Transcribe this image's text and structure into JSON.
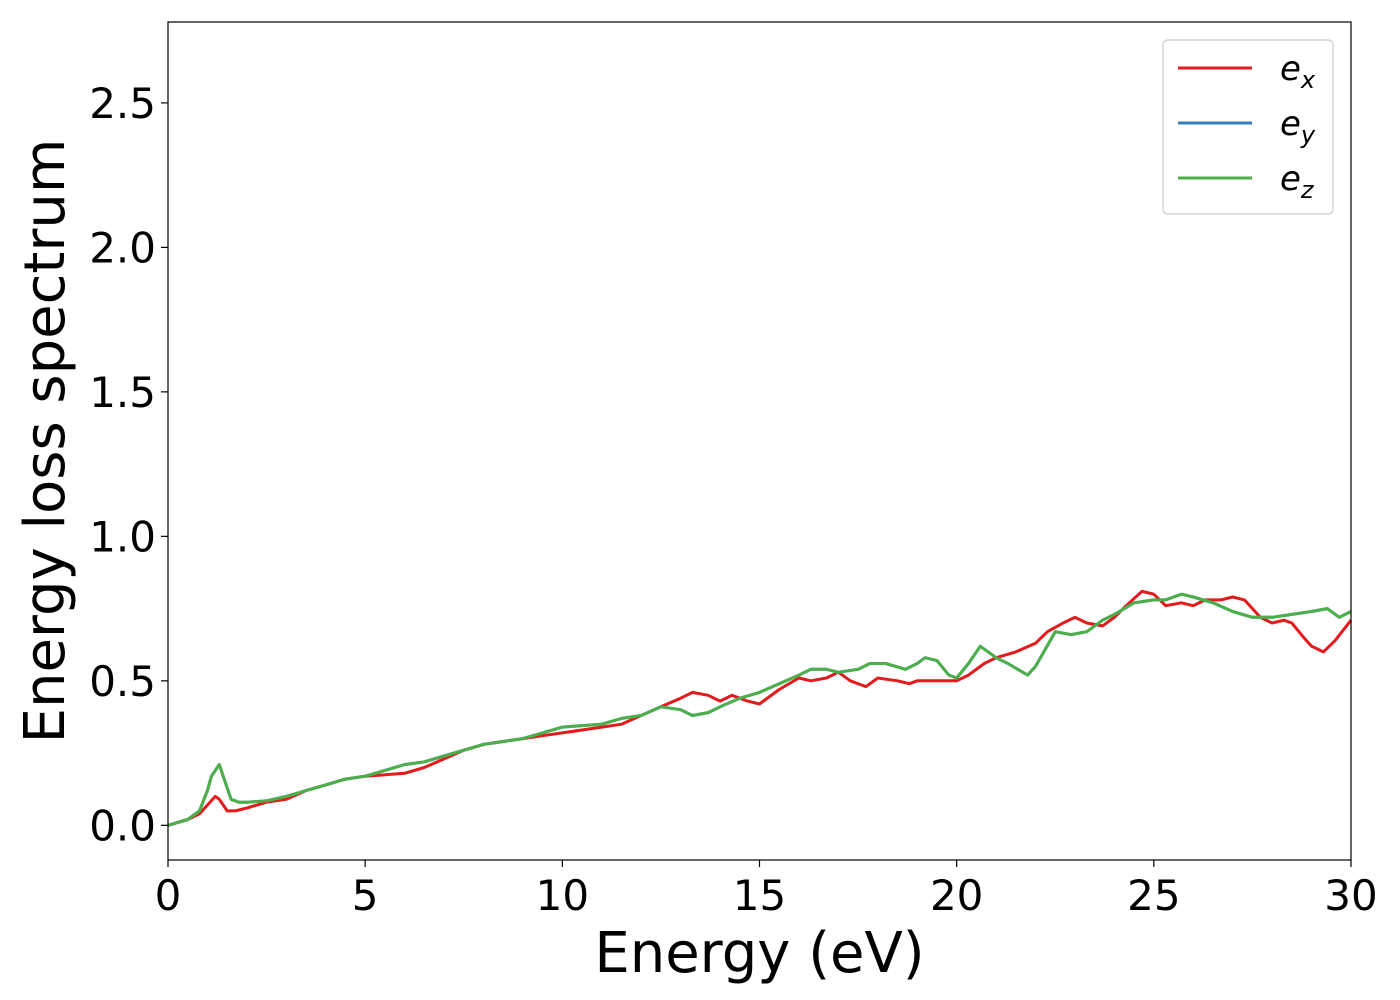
{
  "chart_data": {
    "type": "line",
    "title": "",
    "xlabel": "Energy (eV)",
    "ylabel": "Energy loss spectrum",
    "xlim": [
      0,
      30
    ],
    "ylim": [
      -0.12,
      2.78
    ],
    "xticks": [
      0,
      5,
      10,
      15,
      20,
      25,
      30
    ],
    "xtick_labels": [
      "0",
      "5",
      "10",
      "15",
      "20",
      "25",
      "30"
    ],
    "yticks": [
      0.0,
      0.5,
      1.0,
      1.5,
      2.0,
      2.5
    ],
    "ytick_labels": [
      "0.0",
      "0.5",
      "1.0",
      "1.5",
      "2.0",
      "2.5"
    ],
    "grid": false,
    "legend_position": "top-right",
    "series": [
      {
        "name": "e",
        "subscript": "x",
        "color": "#e41a1c",
        "x": [
          0,
          0.5,
          0.8,
          1.0,
          1.2,
          1.3,
          1.5,
          1.7,
          2.0,
          2.5,
          3.0,
          3.5,
          4.0,
          4.5,
          5.0,
          5.5,
          6.0,
          6.5,
          7.0,
          7.5,
          8.0,
          8.5,
          9.0,
          9.5,
          10.0,
          10.5,
          11.0,
          11.5,
          12.0,
          12.5,
          13.0,
          13.3,
          13.7,
          14.0,
          14.3,
          14.7,
          15.0,
          15.5,
          16.0,
          16.3,
          16.7,
          17.0,
          17.3,
          17.7,
          18.0,
          18.5,
          18.8,
          19.0,
          19.5,
          20.0,
          20.3,
          20.7,
          21.0,
          21.5,
          22.0,
          22.3,
          22.7,
          23.0,
          23.3,
          23.7,
          24.0,
          24.3,
          24.7,
          25.0,
          25.3,
          25.7,
          26.0,
          26.3,
          26.7,
          27.0,
          27.3,
          27.7,
          28.0,
          28.3,
          28.5,
          28.8,
          29.0,
          29.3,
          29.6,
          30.0
        ],
        "values": [
          0.0,
          0.02,
          0.04,
          0.07,
          0.1,
          0.09,
          0.05,
          0.05,
          0.06,
          0.08,
          0.09,
          0.12,
          0.14,
          0.16,
          0.17,
          0.175,
          0.18,
          0.2,
          0.23,
          0.26,
          0.28,
          0.29,
          0.3,
          0.31,
          0.32,
          0.33,
          0.34,
          0.35,
          0.38,
          0.41,
          0.44,
          0.46,
          0.45,
          0.43,
          0.45,
          0.43,
          0.42,
          0.47,
          0.51,
          0.5,
          0.51,
          0.53,
          0.5,
          0.48,
          0.51,
          0.5,
          0.49,
          0.5,
          0.5,
          0.5,
          0.52,
          0.56,
          0.58,
          0.6,
          0.63,
          0.67,
          0.7,
          0.72,
          0.7,
          0.69,
          0.72,
          0.76,
          0.81,
          0.8,
          0.76,
          0.77,
          0.76,
          0.78,
          0.78,
          0.79,
          0.78,
          0.72,
          0.7,
          0.71,
          0.7,
          0.65,
          0.62,
          0.6,
          0.64,
          0.71
        ]
      },
      {
        "name": "e",
        "subscript": "y",
        "color": "#377eb8",
        "x": [
          0,
          0.5,
          0.8,
          1.0,
          1.1,
          1.3,
          1.4,
          1.6,
          1.8,
          2.0,
          2.5,
          3.0,
          3.5,
          4.0,
          4.5,
          5.0,
          5.5,
          6.0,
          6.5,
          7.0,
          7.5,
          8.0,
          8.5,
          9.0,
          9.5,
          10.0,
          10.5,
          11.0,
          11.5,
          12.0,
          12.5,
          13.0,
          13.3,
          13.7,
          14.0,
          14.5,
          15.0,
          15.5,
          16.0,
          16.3,
          16.7,
          17.0,
          17.5,
          17.8,
          18.2,
          18.7,
          19.0,
          19.2,
          19.5,
          19.8,
          20.0,
          20.3,
          20.6,
          21.0,
          21.3,
          21.8,
          22.0,
          22.5,
          22.9,
          23.3,
          23.7,
          24.0,
          24.5,
          25.0,
          25.3,
          25.7,
          26.0,
          26.5,
          27.0,
          27.5,
          28.0,
          28.5,
          29.0,
          29.4,
          29.7,
          30.0
        ],
        "values": [
          0.0,
          0.02,
          0.05,
          0.12,
          0.17,
          0.21,
          0.17,
          0.09,
          0.08,
          0.08,
          0.085,
          0.1,
          0.12,
          0.14,
          0.16,
          0.17,
          0.19,
          0.21,
          0.22,
          0.24,
          0.26,
          0.28,
          0.29,
          0.3,
          0.32,
          0.34,
          0.345,
          0.35,
          0.37,
          0.38,
          0.41,
          0.4,
          0.38,
          0.39,
          0.41,
          0.44,
          0.46,
          0.49,
          0.52,
          0.54,
          0.54,
          0.53,
          0.54,
          0.56,
          0.56,
          0.54,
          0.56,
          0.58,
          0.57,
          0.52,
          0.51,
          0.56,
          0.62,
          0.58,
          0.56,
          0.52,
          0.55,
          0.67,
          0.66,
          0.67,
          0.71,
          0.73,
          0.77,
          0.78,
          0.78,
          0.8,
          0.79,
          0.77,
          0.74,
          0.72,
          0.72,
          0.73,
          0.74,
          0.75,
          0.72,
          0.74
        ]
      },
      {
        "name": "e",
        "subscript": "z",
        "color": "#4daf4a",
        "x": [
          0,
          0.5,
          0.8,
          1.0,
          1.1,
          1.3,
          1.4,
          1.6,
          1.8,
          2.0,
          2.5,
          3.0,
          3.5,
          4.0,
          4.5,
          5.0,
          5.5,
          6.0,
          6.5,
          7.0,
          7.5,
          8.0,
          8.5,
          9.0,
          9.5,
          10.0,
          10.5,
          11.0,
          11.5,
          12.0,
          12.5,
          13.0,
          13.3,
          13.7,
          14.0,
          14.5,
          15.0,
          15.5,
          16.0,
          16.3,
          16.7,
          17.0,
          17.5,
          17.8,
          18.2,
          18.7,
          19.0,
          19.2,
          19.5,
          19.8,
          20.0,
          20.3,
          20.6,
          21.0,
          21.3,
          21.8,
          22.0,
          22.5,
          22.9,
          23.3,
          23.7,
          24.0,
          24.5,
          25.0,
          25.3,
          25.7,
          26.0,
          26.5,
          27.0,
          27.5,
          28.0,
          28.5,
          29.0,
          29.4,
          29.7,
          30.0
        ],
        "values": [
          0.0,
          0.02,
          0.05,
          0.12,
          0.17,
          0.21,
          0.17,
          0.09,
          0.08,
          0.08,
          0.085,
          0.1,
          0.12,
          0.14,
          0.16,
          0.17,
          0.19,
          0.21,
          0.22,
          0.24,
          0.26,
          0.28,
          0.29,
          0.3,
          0.32,
          0.34,
          0.345,
          0.35,
          0.37,
          0.38,
          0.41,
          0.4,
          0.38,
          0.39,
          0.41,
          0.44,
          0.46,
          0.49,
          0.52,
          0.54,
          0.54,
          0.53,
          0.54,
          0.56,
          0.56,
          0.54,
          0.56,
          0.58,
          0.57,
          0.52,
          0.51,
          0.56,
          0.62,
          0.58,
          0.56,
          0.52,
          0.55,
          0.67,
          0.66,
          0.67,
          0.71,
          0.73,
          0.77,
          0.78,
          0.78,
          0.8,
          0.79,
          0.77,
          0.74,
          0.72,
          0.72,
          0.73,
          0.74,
          0.75,
          0.72,
          0.74
        ]
      }
    ]
  }
}
